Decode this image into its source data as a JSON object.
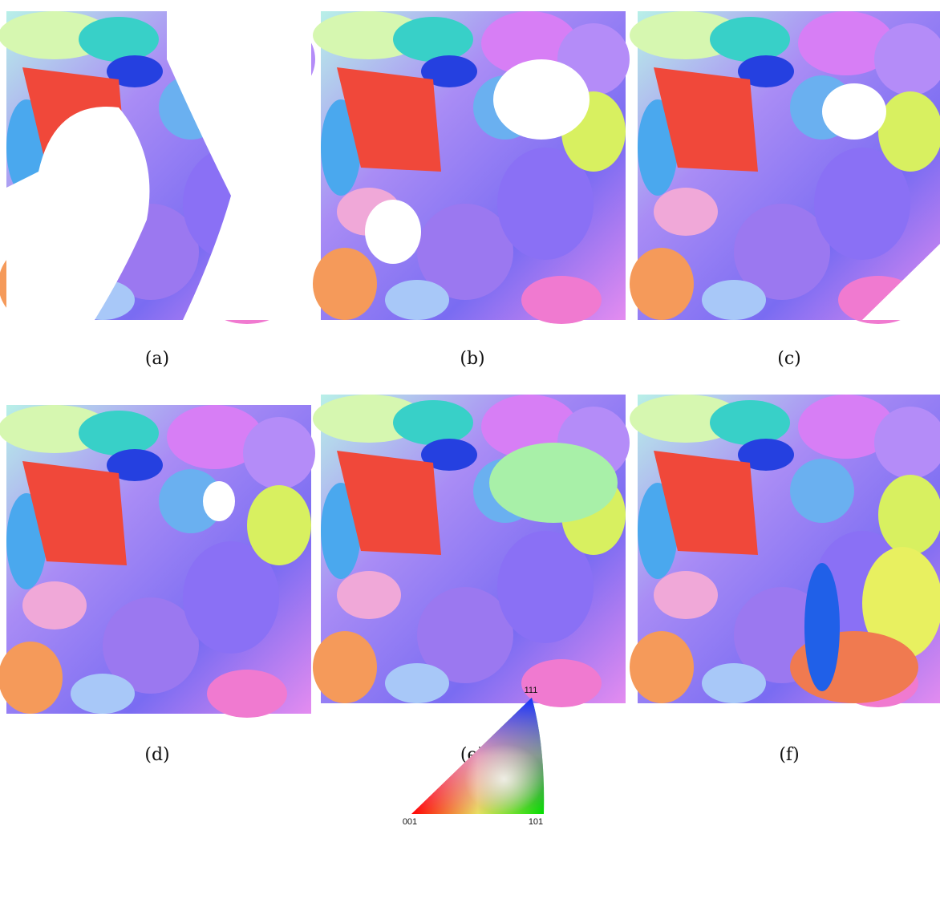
{
  "panels": [
    {
      "label": "(a)"
    },
    {
      "label": "(b)"
    },
    {
      "label": "(c)"
    },
    {
      "label": "(d)"
    },
    {
      "label": "(e)"
    },
    {
      "label": "(f)"
    }
  ],
  "legend": {
    "corners": [
      "001",
      "101",
      "111"
    ]
  }
}
